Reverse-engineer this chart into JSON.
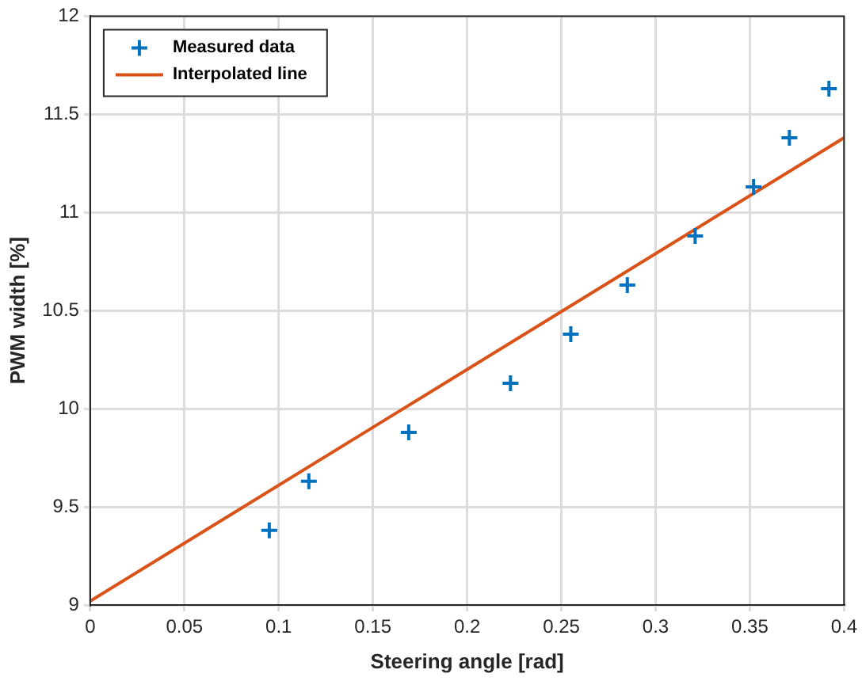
{
  "chart_data": {
    "type": "scatter",
    "xlabel": "Steering angle [rad]",
    "ylabel": "PWM width [%]",
    "series": [
      {
        "name": "Measured data",
        "color": "#0072bd",
        "marker": "cross",
        "x": [
          0.095,
          0.116,
          0.169,
          0.223,
          0.255,
          0.285,
          0.321,
          0.352,
          0.371,
          0.392
        ],
        "values": [
          9.38,
          9.63,
          9.88,
          10.13,
          10.38,
          10.63,
          10.88,
          11.13,
          11.38,
          11.63
        ]
      },
      {
        "name": "Interpolated line",
        "type": "line",
        "color": "#d95319",
        "marker": "none",
        "x": [
          0,
          0.4
        ],
        "values": [
          9.02,
          11.38
        ]
      }
    ],
    "xlim": [
      0,
      0.4
    ],
    "xticks": [
      0,
      0.05,
      0.1,
      0.15,
      0.2,
      0.25,
      0.3,
      0.35,
      0.4
    ],
    "ylim": [
      9,
      12
    ],
    "yticks": [
      9,
      9.5,
      10,
      10.5,
      11,
      11.5,
      12
    ],
    "grid": true,
    "legend": "top left"
  }
}
